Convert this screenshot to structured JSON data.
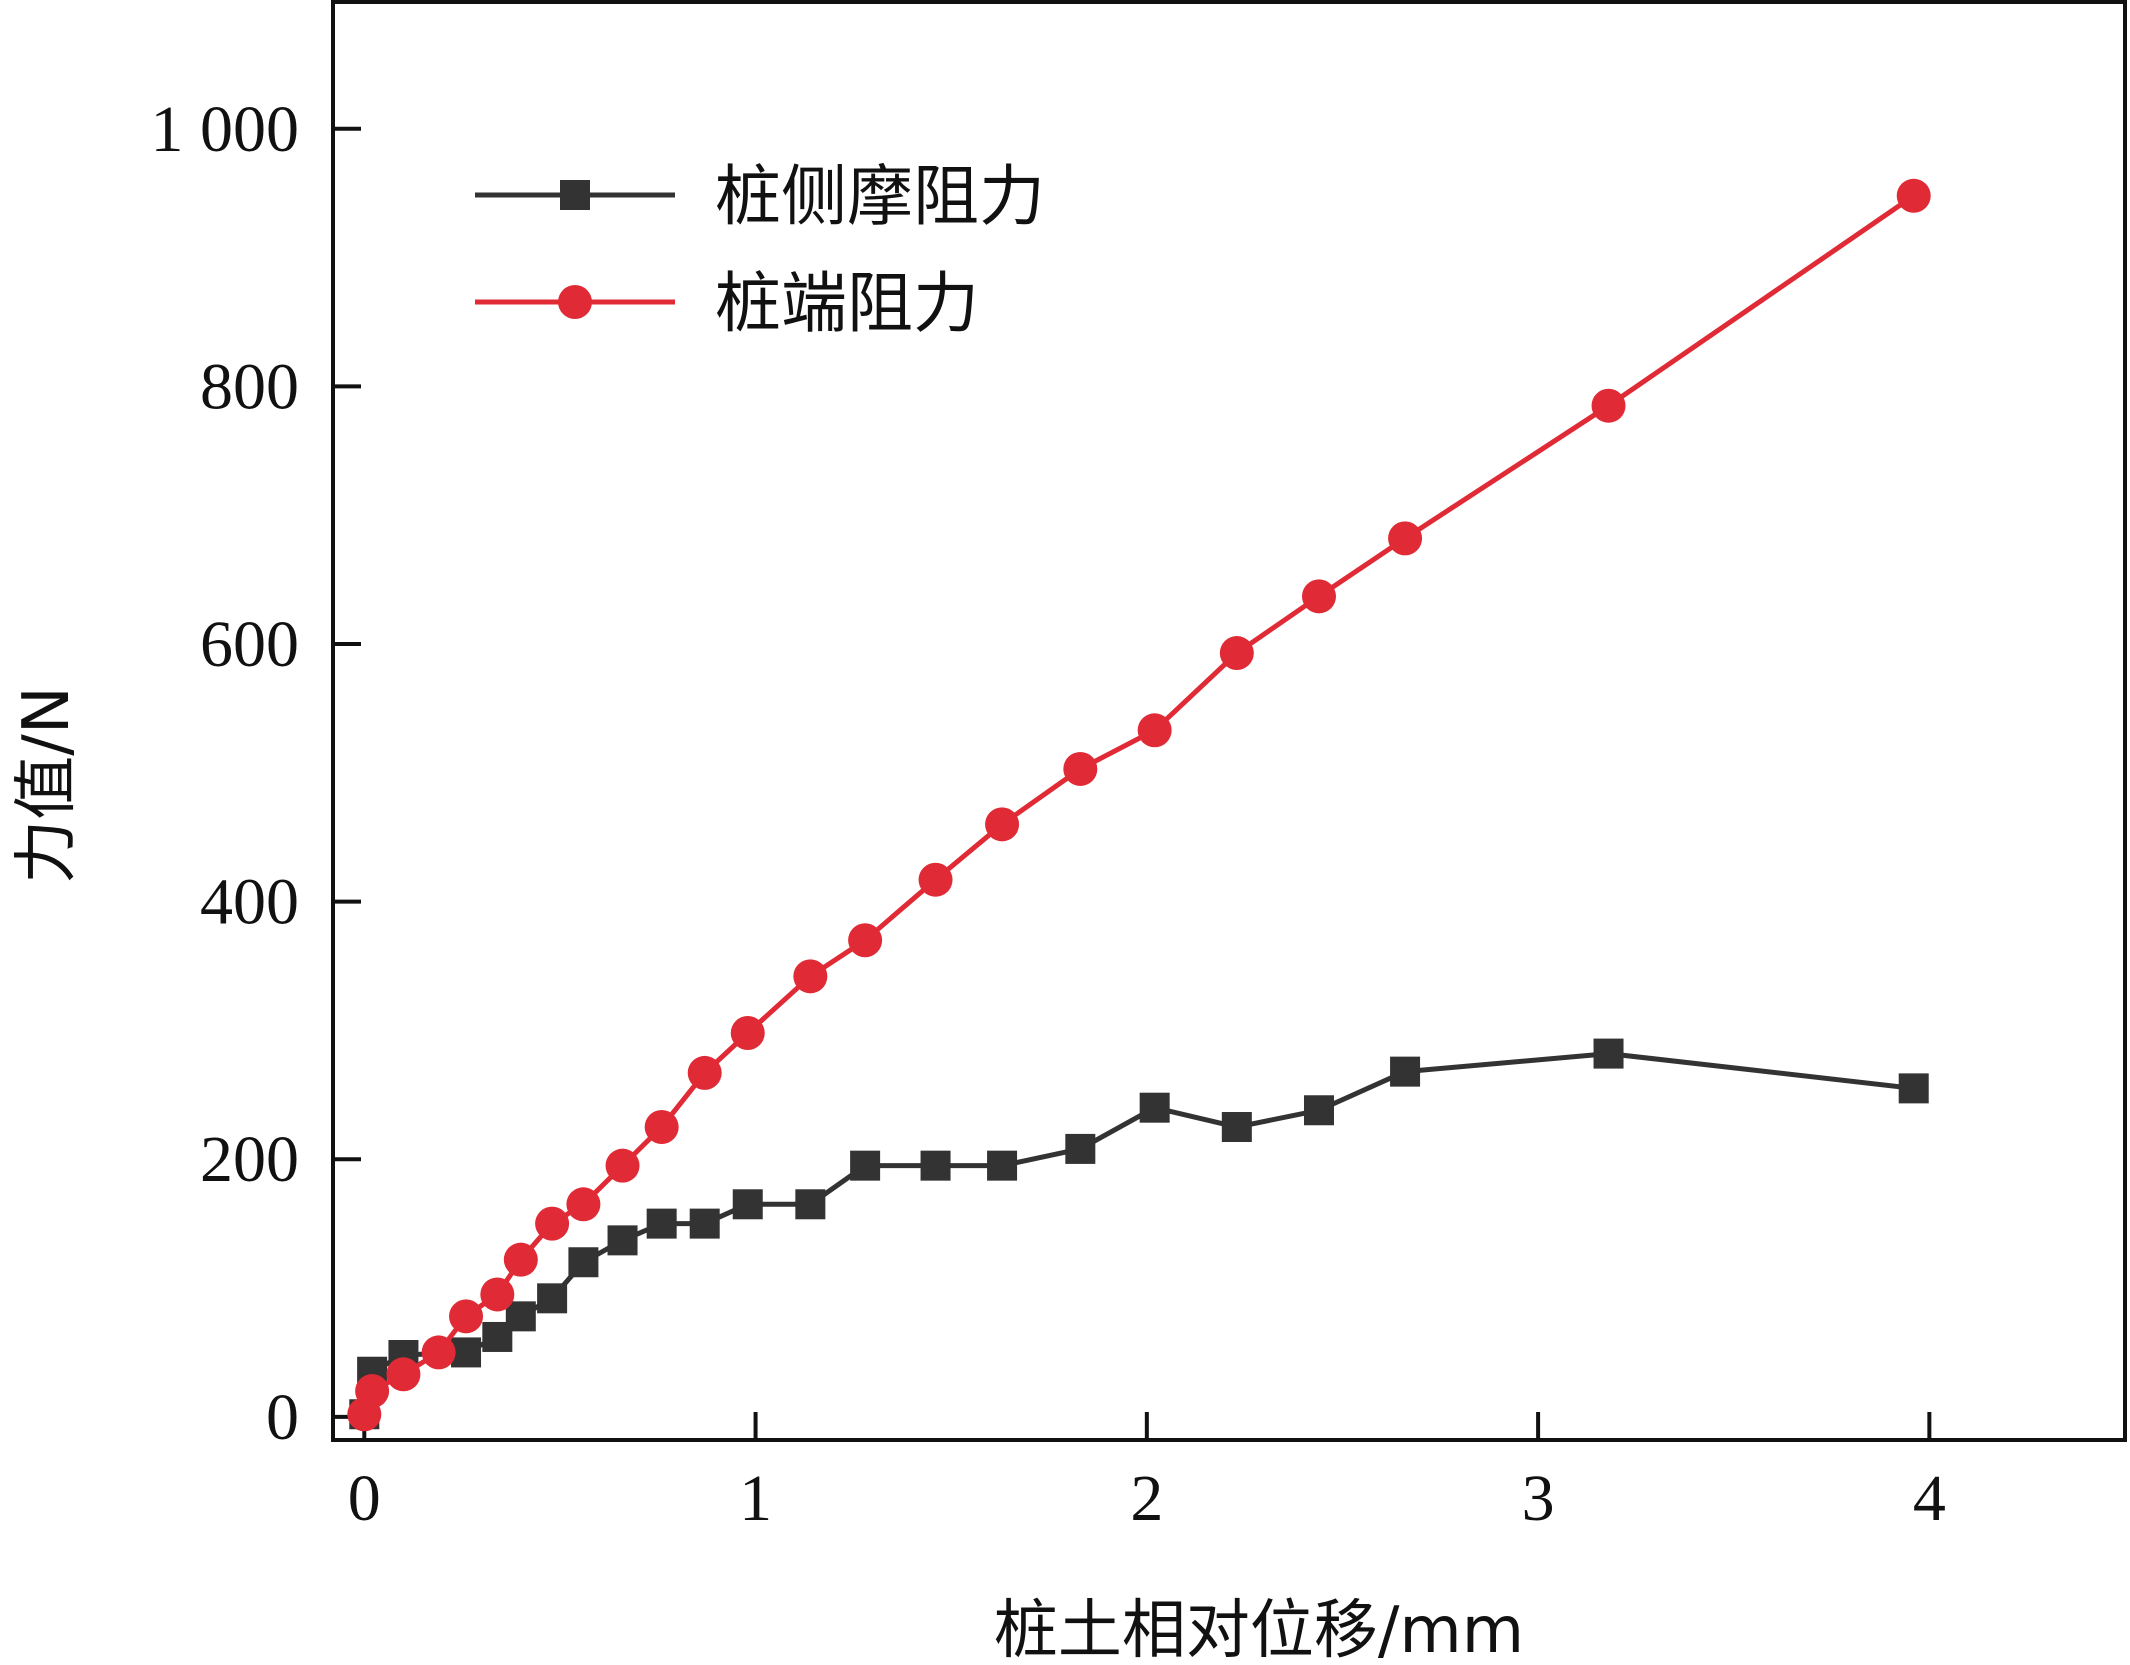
{
  "chart_data": {
    "type": "line",
    "xlabel": "桩土相对位移/mm",
    "ylabel": "力值/N",
    "xlim": [
      -0.08,
      4.5
    ],
    "ylim": [
      -18,
      1100
    ],
    "xticks": [
      0,
      1,
      2,
      3,
      4
    ],
    "xtick_labels": [
      "0",
      "1",
      "2",
      "3",
      "4"
    ],
    "yticks": [
      0,
      200,
      400,
      600,
      800,
      1000
    ],
    "ytick_labels": [
      "0",
      "200",
      "400",
      "600",
      "800",
      "1 000"
    ],
    "legend_position": "top-left",
    "series": [
      {
        "name": "桩侧摩阻力",
        "color": "#333333",
        "marker": "square",
        "x": [
          0.0,
          0.02,
          0.1,
          0.26,
          0.34,
          0.4,
          0.48,
          0.56,
          0.66,
          0.76,
          0.87,
          0.98,
          1.14,
          1.28,
          1.46,
          1.63,
          1.83,
          2.02,
          2.23,
          2.44,
          2.66,
          3.18,
          3.96
        ],
        "y": [
          2,
          35,
          48,
          50,
          62,
          78,
          92,
          120,
          137,
          150,
          150,
          165,
          165,
          195,
          195,
          195,
          208,
          240,
          225,
          238,
          268,
          282,
          255
        ]
      },
      {
        "name": "桩端阻力",
        "color": "#e02a35",
        "marker": "circle",
        "x": [
          0.0,
          0.02,
          0.1,
          0.19,
          0.26,
          0.34,
          0.4,
          0.48,
          0.56,
          0.66,
          0.76,
          0.87,
          0.98,
          1.14,
          1.28,
          1.46,
          1.63,
          1.83,
          2.02,
          2.23,
          2.44,
          2.66,
          3.18,
          3.96
        ],
        "y": [
          2,
          20,
          33,
          50,
          78,
          95,
          122,
          150,
          165,
          195,
          225,
          267,
          298,
          342,
          370,
          417,
          460,
          503,
          533,
          593,
          637,
          682,
          785,
          948
        ]
      }
    ]
  }
}
